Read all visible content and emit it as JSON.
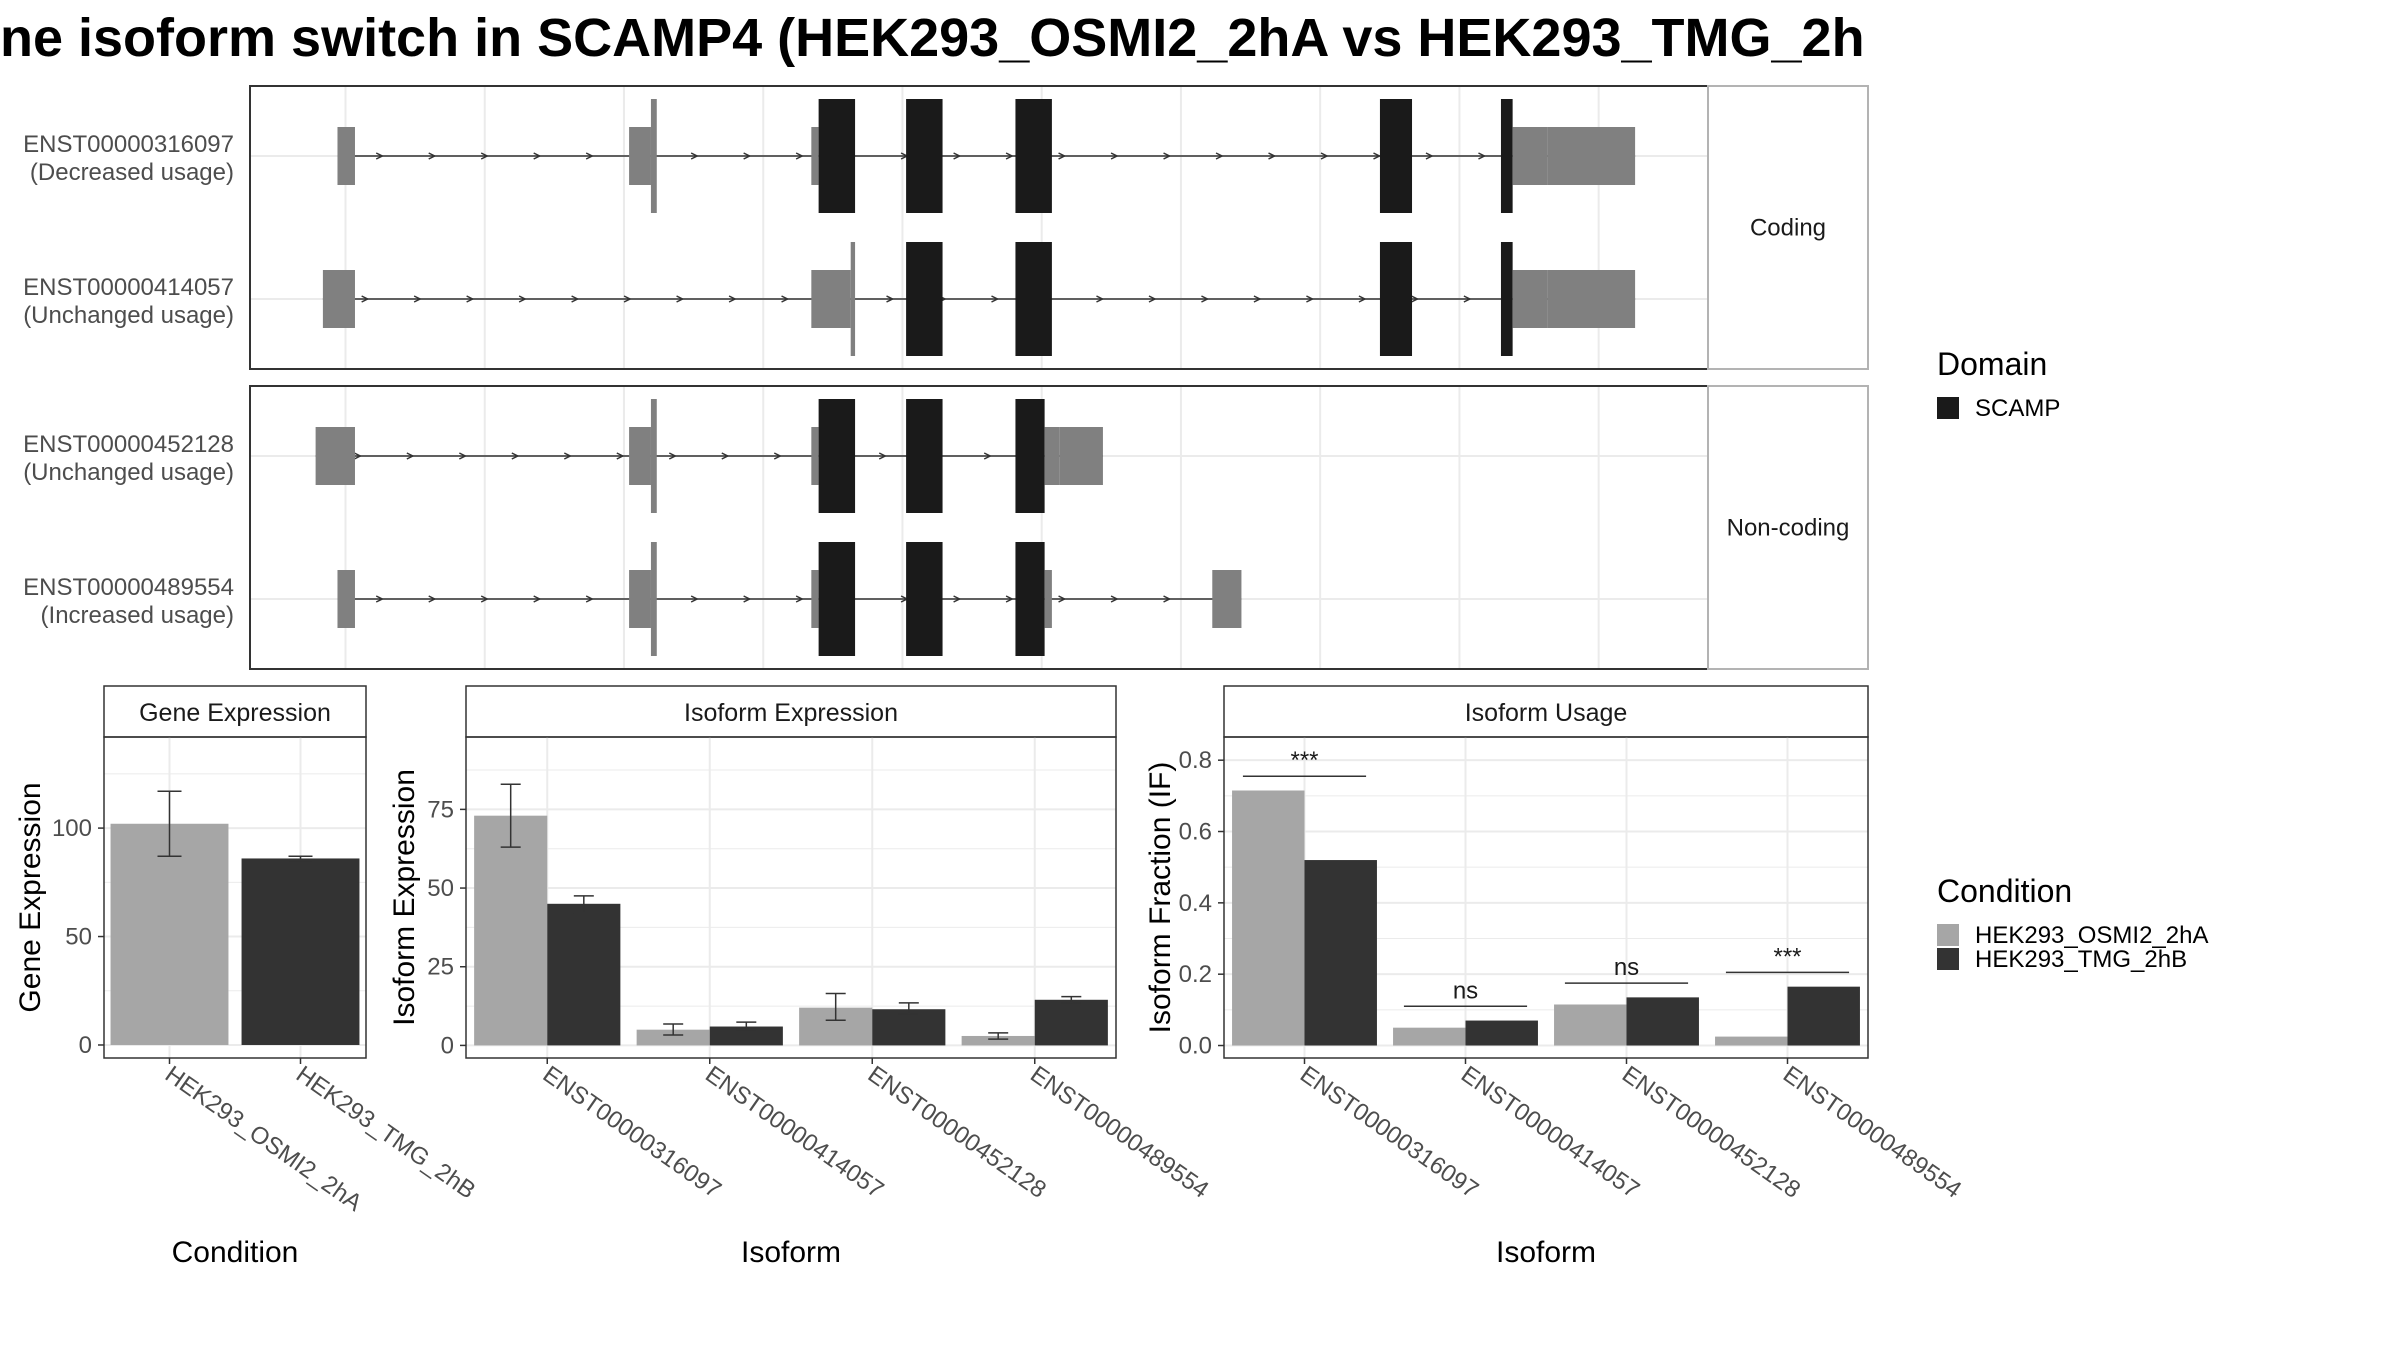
{
  "title": "ne isoform switch in SCAMP4 (HEK293_OSMI2_2hA vs HEK293_TMG_2h",
  "colors": {
    "utr": "#808080",
    "domain": "#1a1a1a",
    "condA": "#a6a6a6",
    "condB": "#333333",
    "grid": "#ebebeb",
    "panel_border": "#333333",
    "strip_border": "#b3b3b3"
  },
  "structure": {
    "groups": [
      {
        "label": "Coding",
        "transcripts": [
          {
            "id": "ENST00000316097",
            "usage": "(Decreased usage)",
            "span": [
              0.06,
              0.95
            ],
            "segments": [
              {
                "s": 0.06,
                "e": 0.072,
                "t": "utr"
              },
              {
                "s": 0.26,
                "e": 0.275,
                "t": "utr"
              },
              {
                "s": 0.275,
                "e": 0.279,
                "t": "cds"
              },
              {
                "s": 0.385,
                "e": 0.39,
                "t": "utr"
              },
              {
                "s": 0.39,
                "e": 0.415,
                "t": "domain"
              },
              {
                "s": 0.45,
                "e": 0.475,
                "t": "domain"
              },
              {
                "s": 0.525,
                "e": 0.55,
                "t": "domain"
              },
              {
                "s": 0.775,
                "e": 0.797,
                "t": "domain"
              },
              {
                "s": 0.858,
                "e": 0.866,
                "t": "domain"
              },
              {
                "s": 0.866,
                "e": 0.89,
                "t": "utr"
              },
              {
                "s": 0.89,
                "e": 0.95,
                "t": "utr3"
              }
            ]
          },
          {
            "id": "ENST00000414057",
            "usage": "(Unchanged usage)",
            "span": [
              0.05,
              0.95
            ],
            "segments": [
              {
                "s": 0.05,
                "e": 0.072,
                "t": "utr"
              },
              {
                "s": 0.385,
                "e": 0.412,
                "t": "utr"
              },
              {
                "s": 0.412,
                "e": 0.415,
                "t": "cds"
              },
              {
                "s": 0.45,
                "e": 0.475,
                "t": "domain"
              },
              {
                "s": 0.525,
                "e": 0.55,
                "t": "domain"
              },
              {
                "s": 0.775,
                "e": 0.797,
                "t": "domain"
              },
              {
                "s": 0.858,
                "e": 0.866,
                "t": "domain"
              },
              {
                "s": 0.866,
                "e": 0.89,
                "t": "utr"
              },
              {
                "s": 0.89,
                "e": 0.95,
                "t": "utr3"
              }
            ]
          }
        ]
      },
      {
        "label": "Non-coding",
        "transcripts": [
          {
            "id": "ENST00000452128",
            "usage": "(Unchanged usage)",
            "span": [
              0.045,
              0.585
            ],
            "segments": [
              {
                "s": 0.045,
                "e": 0.072,
                "t": "utr"
              },
              {
                "s": 0.26,
                "e": 0.275,
                "t": "utr"
              },
              {
                "s": 0.275,
                "e": 0.279,
                "t": "cds"
              },
              {
                "s": 0.385,
                "e": 0.39,
                "t": "utr"
              },
              {
                "s": 0.39,
                "e": 0.415,
                "t": "domain"
              },
              {
                "s": 0.45,
                "e": 0.475,
                "t": "domain"
              },
              {
                "s": 0.525,
                "e": 0.545,
                "t": "domain"
              },
              {
                "s": 0.545,
                "e": 0.555,
                "t": "utr"
              },
              {
                "s": 0.555,
                "e": 0.585,
                "t": "utr3"
              }
            ]
          },
          {
            "id": "ENST00000489554",
            "usage": "(Increased usage)",
            "span": [
              0.06,
              0.68
            ],
            "segments": [
              {
                "s": 0.06,
                "e": 0.072,
                "t": "utr"
              },
              {
                "s": 0.26,
                "e": 0.275,
                "t": "utr"
              },
              {
                "s": 0.275,
                "e": 0.279,
                "t": "cds"
              },
              {
                "s": 0.385,
                "e": 0.39,
                "t": "utr"
              },
              {
                "s": 0.39,
                "e": 0.415,
                "t": "domain"
              },
              {
                "s": 0.45,
                "e": 0.475,
                "t": "domain"
              },
              {
                "s": 0.525,
                "e": 0.545,
                "t": "domain"
              },
              {
                "s": 0.545,
                "e": 0.55,
                "t": "utr"
              },
              {
                "s": 0.66,
                "e": 0.68,
                "t": "utr"
              }
            ]
          }
        ]
      }
    ]
  },
  "legend_domain": {
    "title": "Domain",
    "items": [
      {
        "label": "SCAMP",
        "color": "#1a1a1a"
      }
    ]
  },
  "legend_condition": {
    "title": "Condition",
    "items": [
      {
        "label": "HEK293_OSMI2_2hA",
        "color": "#a6a6a6"
      },
      {
        "label": "HEK293_TMG_2hB",
        "color": "#333333"
      }
    ]
  },
  "chart_data": [
    {
      "type": "bar",
      "title": "Gene Expression",
      "xlabel": "Condition",
      "ylabel": "Gene Expression",
      "categories": [
        "HEK293_OSMI2_2hA",
        "HEK293_TMG_2hB"
      ],
      "values": [
        102,
        86
      ],
      "errors": [
        [
          87,
          117
        ],
        [
          85,
          87
        ]
      ],
      "ylim": [
        -6,
        142
      ],
      "yticks": [
        0,
        50,
        100
      ]
    },
    {
      "type": "bar",
      "title": "Isoform Expression",
      "xlabel": "Isoform",
      "ylabel": "Isoform Expression",
      "categories": [
        "ENST00000316097",
        "ENST00000414057",
        "ENST00000452128",
        "ENST00000489554"
      ],
      "series": [
        {
          "name": "HEK293_OSMI2_2hA",
          "values": [
            73,
            5,
            12,
            3
          ],
          "errors": [
            [
              63,
              83
            ],
            [
              3.3,
              6.8
            ],
            [
              8,
              16.5
            ],
            [
              2,
              4
            ]
          ]
        },
        {
          "name": "HEK293_TMG_2hB",
          "values": [
            45,
            6,
            11.5,
            14.5
          ],
          "errors": [
            [
              42,
              47.5
            ],
            [
              5,
              7.4
            ],
            [
              10,
              13.5
            ],
            [
              13.5,
              15.5
            ]
          ]
        }
      ],
      "ylim": [
        -4,
        98
      ],
      "yticks": [
        0,
        25,
        50,
        75
      ]
    },
    {
      "type": "bar",
      "title": "Isoform Usage",
      "xlabel": "Isoform",
      "ylabel": "Isoform Fraction (IF)",
      "categories": [
        "ENST00000316097",
        "ENST00000414057",
        "ENST00000452128",
        "ENST00000489554"
      ],
      "series": [
        {
          "name": "HEK293_OSMI2_2hA",
          "values": [
            0.715,
            0.05,
            0.115,
            0.025
          ]
        },
        {
          "name": "HEK293_TMG_2hB",
          "values": [
            0.52,
            0.07,
            0.135,
            0.165
          ]
        }
      ],
      "significance": [
        "***",
        "ns",
        "ns",
        "***"
      ],
      "sig_y": [
        0.755,
        0.11,
        0.175,
        0.205
      ],
      "ylim": [
        -0.035,
        0.865
      ],
      "yticks": [
        0.0,
        0.2,
        0.4,
        0.6,
        0.8
      ],
      "ytick_labels": [
        "0.0",
        "0.2",
        "0.4",
        "0.6",
        "0.8"
      ]
    }
  ]
}
